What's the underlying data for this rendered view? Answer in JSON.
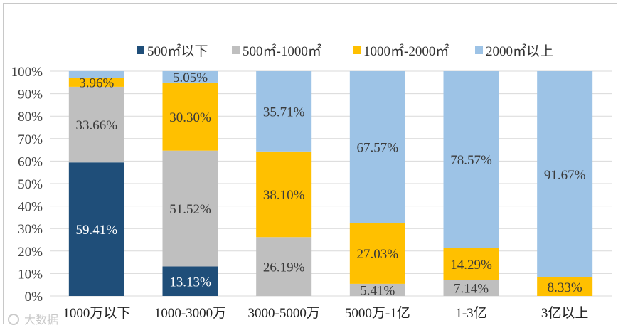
{
  "chart_data": {
    "type": "bar",
    "stacked": true,
    "title": "",
    "xlabel": "",
    "ylabel": "",
    "ylim": [
      0,
      100
    ],
    "yticks": [
      "0%",
      "10%",
      "20%",
      "30%",
      "40%",
      "50%",
      "60%",
      "70%",
      "80%",
      "90%",
      "100%"
    ],
    "grid": true,
    "legend_position": "top",
    "categories": [
      "1000万以下",
      "1000-3000万",
      "3000-5000万",
      "5000万-1亿",
      "1-3亿",
      "3亿以上"
    ],
    "series": [
      {
        "name": "500㎡以下",
        "color": "#1f4e79",
        "values": [
          59.41,
          13.13,
          0,
          0,
          0,
          0
        ],
        "labels": [
          "59.41%",
          "13.13%",
          "",
          "",
          "",
          ""
        ]
      },
      {
        "name": "500㎡-1000㎡",
        "color": "#bfbfbf",
        "values": [
          33.66,
          51.52,
          26.19,
          5.41,
          7.14,
          0
        ],
        "labels": [
          "33.66%",
          "51.52%",
          "26.19%",
          "5.41%",
          "7.14%",
          ""
        ]
      },
      {
        "name": "1000㎡-2000㎡",
        "color": "#ffc000",
        "values": [
          3.96,
          30.3,
          38.1,
          27.03,
          14.29,
          8.33
        ],
        "labels": [
          "3.96%",
          "30.30%",
          "38.10%",
          "27.03%",
          "14.29%",
          "8.33%"
        ]
      },
      {
        "name": "2000㎡以上",
        "color": "#9dc3e6",
        "values": [
          2.97,
          5.05,
          35.71,
          67.57,
          78.57,
          91.67
        ],
        "labels": [
          "",
          "5.05%",
          "35.71%",
          "67.57%",
          "78.57%",
          "91.67%"
        ]
      }
    ]
  },
  "watermark": "大数据"
}
